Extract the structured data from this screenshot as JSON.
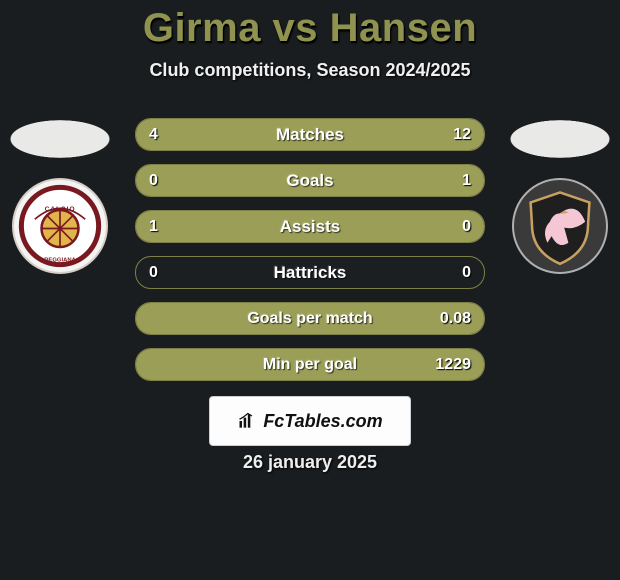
{
  "header": {
    "title": "Girma vs Hansen",
    "subtitle": "Club competitions, Season 2024/2025",
    "title_color": "#8f934f"
  },
  "colors": {
    "bar_fill": "#9a9e57",
    "bar_track": "#1c1f22",
    "bar_border": "#7d8146",
    "background": "#1a1d1f"
  },
  "bars": [
    {
      "label": "Matches",
      "left": "4",
      "right": "12",
      "left_pct": 25,
      "right_pct": 75,
      "mode": "full",
      "label_fontsize": 17
    },
    {
      "label": "Goals",
      "left": "0",
      "right": "1",
      "left_pct": 0,
      "right_pct": 100,
      "mode": "right",
      "label_fontsize": 17
    },
    {
      "label": "Assists",
      "left": "1",
      "right": "0",
      "left_pct": 100,
      "right_pct": 0,
      "mode": "left",
      "label_fontsize": 17
    },
    {
      "label": "Hattricks",
      "left": "0",
      "right": "0",
      "left_pct": 0,
      "right_pct": 0,
      "mode": "none",
      "label_fontsize": 17
    },
    {
      "label": "Goals per match",
      "left": "",
      "right": "0.08",
      "left_pct": 0,
      "right_pct": 100,
      "mode": "right",
      "label_fontsize": 16
    },
    {
      "label": "Min per goal",
      "left": "",
      "right": "1229",
      "left_pct": 0,
      "right_pct": 100,
      "mode": "right",
      "label_fontsize": 16
    }
  ],
  "players": {
    "left": {
      "crest_bg": "#f3f5f4",
      "crest_border": "#d7cfc6"
    },
    "right": {
      "crest_bg": "#3a3a3a",
      "crest_border": "#b0b0b0"
    }
  },
  "footer": {
    "brand": "FcTables.com",
    "date": "26 january 2025"
  }
}
